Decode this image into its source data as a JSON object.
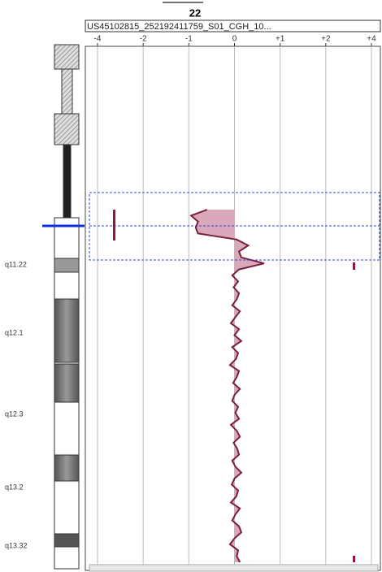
{
  "chart_data": {
    "type": "line",
    "title": "22",
    "subtitle": "US45102815_252192411759_S01_CGH_10...",
    "xlim": [
      -4,
      4
    ],
    "xticks": [
      {
        "value": -4,
        "label": "-4"
      },
      {
        "value": -2,
        "label": "-2"
      },
      {
        "value": -1,
        "label": "-1"
      },
      0,
      {
        "value": 1,
        "label": "+1"
      },
      {
        "value": 2,
        "label": "+2"
      },
      {
        "value": 4,
        "label": "+4"
      }
    ],
    "grid": true,
    "bands": [
      "q11.22",
      "q12.1",
      "q12.3",
      "q13.2",
      "q13.32"
    ],
    "series": [
      {
        "color": "#7a1f3d",
        "fill": "#d9a9bb",
        "values": [
          -0.6,
          -0.95,
          -0.8,
          -0.85,
          -0.8,
          0.05,
          0.3,
          0.1,
          0.15,
          0.65,
          0.1,
          -0.05,
          0.08,
          -0.02,
          0.1,
          0.05,
          -0.05,
          0.12,
          0.02,
          -0.08,
          0.1,
          0.0,
          0.15,
          -0.05,
          0.08,
          0.03,
          -0.1,
          0.1,
          0.05,
          -0.03,
          0.12,
          0.0,
          -0.05,
          0.08,
          0.02,
          0.1,
          -0.08,
          0.05,
          0.12,
          -0.02,
          0.06,
          0.1,
          -0.05,
          0.02,
          0.15,
          0.0,
          -0.06,
          0.08,
          0.04,
          -0.08,
          0.12,
          0.02,
          -0.05,
          0.1,
          0.15,
          0.0,
          -0.1,
          0.08,
          0.05,
          0.12
        ]
      }
    ]
  }
}
